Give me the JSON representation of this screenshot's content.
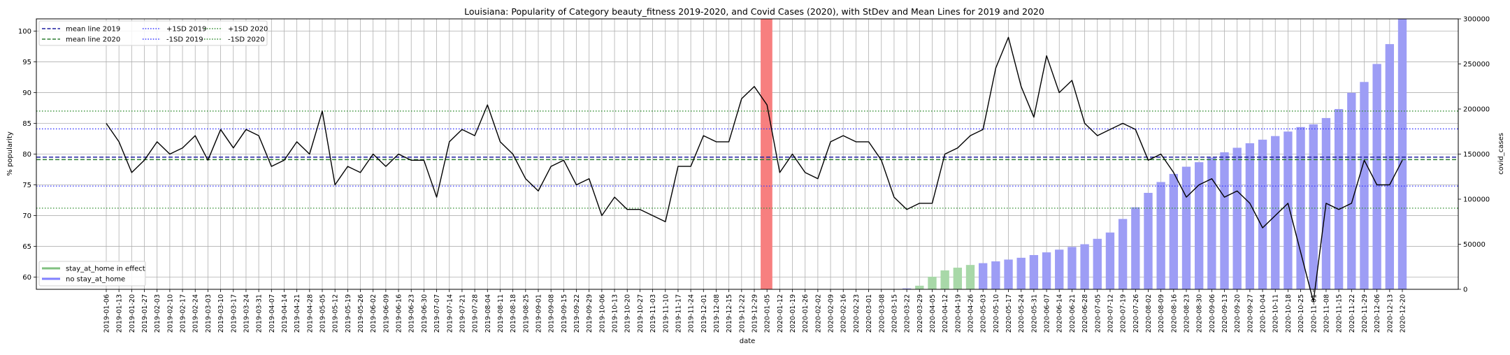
{
  "chart_data": {
    "type": "line",
    "title": "Louisiana: Popularity of Category beauty_fitness 2019-2020, and Covid Cases (2020), with StDev and Mean Lines for 2019 and 2020",
    "xlabel": "date",
    "ylabel": "% popularity",
    "y2label": "covid_cases",
    "ylim": [
      58,
      102
    ],
    "y2lim": [
      0,
      300000
    ],
    "yticks": [
      60,
      65,
      70,
      75,
      80,
      85,
      90,
      95,
      100
    ],
    "y2ticks": [
      0,
      50000,
      100000,
      150000,
      200000,
      250000,
      300000
    ],
    "grid": true,
    "dates": [
      "2019-01-06",
      "2019-01-13",
      "2019-01-20",
      "2019-01-27",
      "2019-02-03",
      "2019-02-10",
      "2019-02-17",
      "2019-02-24",
      "2019-03-03",
      "2019-03-10",
      "2019-03-17",
      "2019-03-24",
      "2019-03-31",
      "2019-04-07",
      "2019-04-14",
      "2019-04-21",
      "2019-04-28",
      "2019-05-05",
      "2019-05-12",
      "2019-05-19",
      "2019-05-26",
      "2019-06-02",
      "2019-06-09",
      "2019-06-16",
      "2019-06-23",
      "2019-06-30",
      "2019-07-07",
      "2019-07-14",
      "2019-07-21",
      "2019-07-28",
      "2019-08-04",
      "2019-08-11",
      "2019-08-18",
      "2019-08-25",
      "2019-09-01",
      "2019-09-08",
      "2019-09-15",
      "2019-09-22",
      "2019-09-29",
      "2019-10-06",
      "2019-10-13",
      "2019-10-20",
      "2019-10-27",
      "2019-11-03",
      "2019-11-10",
      "2019-11-17",
      "2019-11-24",
      "2019-12-01",
      "2019-12-08",
      "2019-12-15",
      "2019-12-22",
      "2019-12-29",
      "2020-01-05",
      "2020-01-12",
      "2020-01-19",
      "2020-01-26",
      "2020-02-02",
      "2020-02-09",
      "2020-02-16",
      "2020-02-23",
      "2020-03-01",
      "2020-03-08",
      "2020-03-15",
      "2020-03-22",
      "2020-03-29",
      "2020-04-05",
      "2020-04-12",
      "2020-04-19",
      "2020-04-26",
      "2020-05-03",
      "2020-05-10",
      "2020-05-17",
      "2020-05-24",
      "2020-05-31",
      "2020-06-07",
      "2020-06-14",
      "2020-06-21",
      "2020-06-28",
      "2020-07-05",
      "2020-07-12",
      "2020-07-19",
      "2020-07-26",
      "2020-08-02",
      "2020-08-09",
      "2020-08-16",
      "2020-08-23",
      "2020-08-30",
      "2020-09-06",
      "2020-09-13",
      "2020-09-20",
      "2020-09-27",
      "2020-10-04",
      "2020-10-11",
      "2020-10-18",
      "2020-10-25",
      "2020-11-01",
      "2020-11-08",
      "2020-11-15",
      "2020-11-22",
      "2020-11-29",
      "2020-12-06",
      "2020-12-13",
      "2020-12-20"
    ],
    "popularity": [
      85,
      82,
      77,
      79,
      82,
      80,
      81,
      83,
      79,
      84,
      81,
      84,
      83,
      78,
      79,
      82,
      80,
      87,
      75,
      78,
      77,
      80,
      78,
      80,
      79,
      79,
      73,
      82,
      84,
      83,
      88,
      82,
      80,
      76,
      74,
      78,
      79,
      75,
      76,
      70,
      73,
      71,
      71,
      70,
      69,
      78,
      78,
      83,
      82,
      82,
      89,
      91,
      88,
      77,
      80,
      77,
      76,
      82,
      83,
      82,
      82,
      79,
      73,
      71,
      72,
      72,
      80,
      81,
      83,
      84,
      94,
      99,
      91,
      86,
      96,
      90,
      92,
      85,
      83,
      84,
      85,
      84,
      79,
      80,
      77,
      73,
      75,
      76,
      73,
      74,
      72,
      68,
      70,
      72,
      64,
      56,
      72,
      71,
      72,
      79,
      75,
      75,
      79
    ],
    "covid_cases": [
      0,
      0,
      0,
      0,
      0,
      0,
      0,
      0,
      0,
      0,
      0,
      0,
      0,
      0,
      0,
      0,
      0,
      0,
      0,
      0,
      0,
      0,
      0,
      0,
      0,
      0,
      0,
      0,
      0,
      0,
      0,
      0,
      0,
      0,
      0,
      0,
      0,
      0,
      0,
      0,
      0,
      0,
      0,
      0,
      0,
      0,
      0,
      0,
      0,
      0,
      0,
      0,
      0,
      0,
      0,
      0,
      0,
      0,
      0,
      0,
      0,
      0,
      0,
      1000,
      4000,
      14000,
      21000,
      24000,
      27000,
      29000,
      31000,
      33000,
      35000,
      38000,
      41000,
      44000,
      47000,
      50000,
      56000,
      63000,
      78000,
      91000,
      107000,
      119000,
      128000,
      136000,
      141000,
      146000,
      152000,
      157000,
      162000,
      166000,
      170000,
      175000,
      180000,
      183000,
      190000,
      200000,
      218000,
      230000,
      250000,
      272000,
      300000
    ],
    "stay_at_home_start": "2020-03-29",
    "stay_at_home_end": "2020-04-26",
    "highlight_week": "2020-01-05",
    "mean_2019": 79.5,
    "mean_2020": 79.1,
    "plus1sd_2019": 84.1,
    "minus1sd_2019": 74.8,
    "plus1sd_2020": 87.0,
    "minus1sd_2020": 71.2,
    "legend_lines": [
      {
        "label": "mean line 2019",
        "color": "#1f1fa0",
        "style": "dashed"
      },
      {
        "label": "mean line 2020",
        "color": "#2e7d32",
        "style": "dashed"
      },
      {
        "label": "+1SD 2019",
        "color": "#3333ff",
        "style": "dotted"
      },
      {
        "label": "-1SD 2019",
        "color": "#3333ff",
        "style": "dotted"
      },
      {
        "label": "+1SD 2020",
        "color": "#2e8b2e",
        "style": "dotted"
      },
      {
        "label": "-1SD 2020",
        "color": "#2e8b2e",
        "style": "dotted"
      }
    ],
    "legend_bars": [
      {
        "label": "stay_at_home in effect",
        "color": "#80c080"
      },
      {
        "label": "no stay_at_home",
        "color": "#8080ff"
      }
    ],
    "colors": {
      "popularity_line": "#000000",
      "bar_no_stay": "#9d9df5",
      "bar_stay": "#a8d8a8",
      "highlight": "#f77f7f"
    }
  }
}
